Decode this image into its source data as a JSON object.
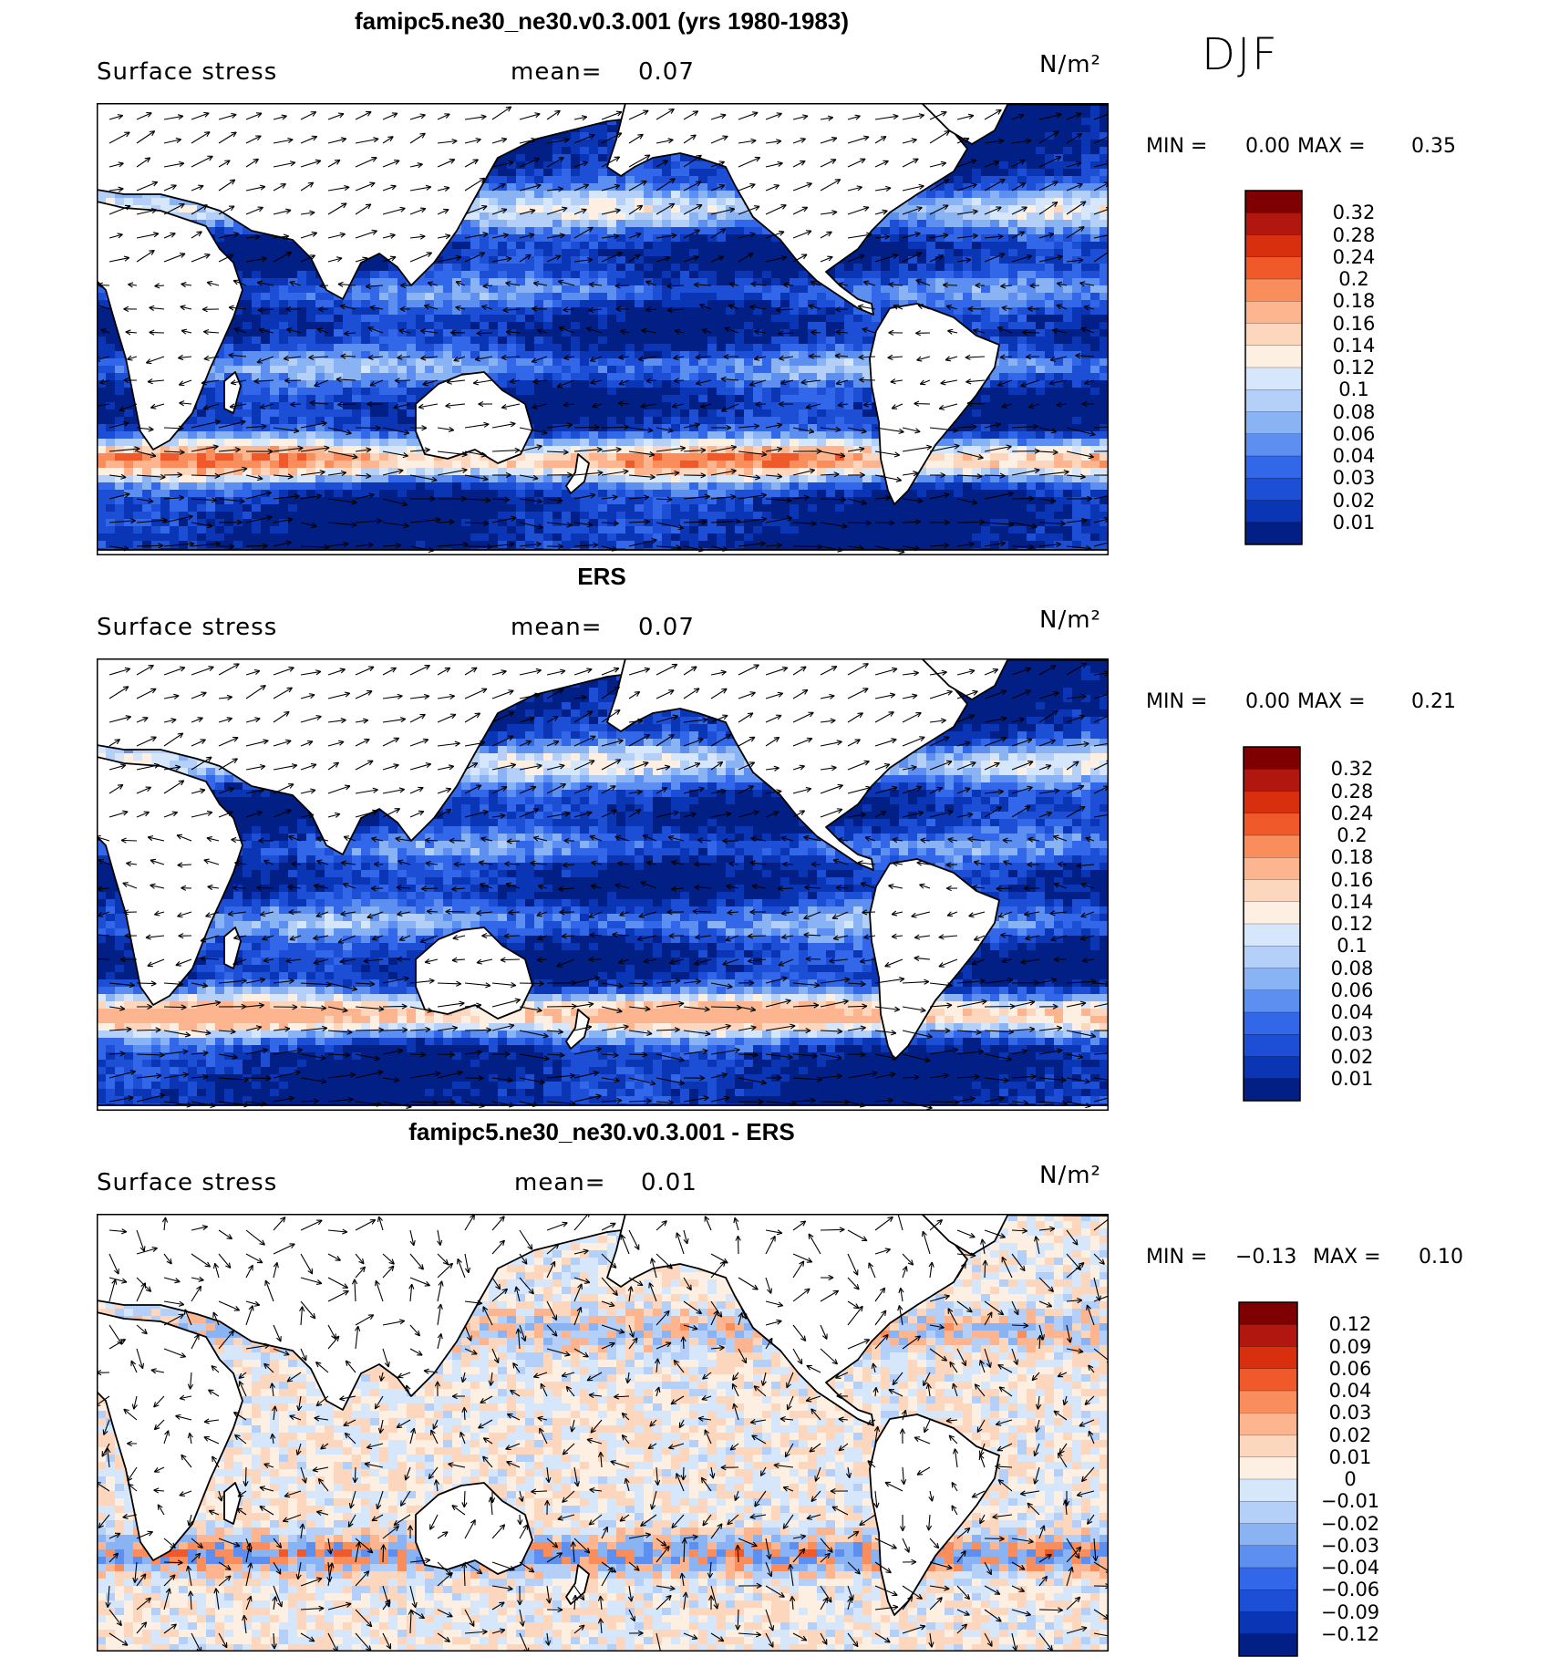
{
  "season": "DJF",
  "panels": [
    {
      "title": "famipc5.ne30_ne30.v0.3.001 (yrs 1980-1983)",
      "variable": "Surface stress",
      "mean_label": "mean=",
      "mean_value": "0.07",
      "units": "N/m²",
      "min_label": "MIN =",
      "min_value": "0.00",
      "max_label": "MAX =",
      "max_value": "0.35",
      "colorbar_ticks": [
        "0.32",
        "0.28",
        "0.24",
        "0.2",
        "0.18",
        "0.16",
        "0.14",
        "0.12",
        "0.1",
        "0.08",
        "0.06",
        "0.04",
        "0.03",
        "0.02",
        "0.01"
      ],
      "colorbar_colors": [
        "#7f0000",
        "#b2170f",
        "#d8300f",
        "#f05a2a",
        "#f98e5c",
        "#fcb58e",
        "#fdd7bd",
        "#fdefe2",
        "#d6e7fb",
        "#b5d0f8",
        "#8ab3f3",
        "#5c8ff0",
        "#3167e8",
        "#1c4fd6",
        "#0a35b5",
        "#021f85"
      ],
      "field_colors": [
        "#021f85",
        "#0a35b5",
        "#1c4fd6",
        "#3167e8",
        "#5c8ff0",
        "#8ab3f3",
        "#b5d0f8",
        "#d6e7fb",
        "#fdefe2",
        "#fdd7bd",
        "#fcb58e",
        "#f98e5c",
        "#f05a2a"
      ]
    },
    {
      "title": "ERS",
      "variable": "Surface stress",
      "mean_label": "mean=",
      "mean_value": "0.07",
      "units": "N/m²",
      "min_label": "MIN =",
      "min_value": "0.00",
      "max_label": "MAX =",
      "max_value": "0.21",
      "colorbar_ticks": [
        "0.32",
        "0.28",
        "0.24",
        "0.2",
        "0.18",
        "0.16",
        "0.14",
        "0.12",
        "0.1",
        "0.08",
        "0.06",
        "0.04",
        "0.03",
        "0.02",
        "0.01"
      ],
      "colorbar_colors": [
        "#7f0000",
        "#b2170f",
        "#d8300f",
        "#f05a2a",
        "#f98e5c",
        "#fcb58e",
        "#fdd7bd",
        "#fdefe2",
        "#d6e7fb",
        "#b5d0f8",
        "#8ab3f3",
        "#5c8ff0",
        "#3167e8",
        "#1c4fd6",
        "#0a35b5",
        "#021f85"
      ],
      "field_colors": [
        "#021f85",
        "#0a35b5",
        "#1c4fd6",
        "#3167e8",
        "#5c8ff0",
        "#8ab3f3",
        "#b5d0f8",
        "#d6e7fb",
        "#fdefe2",
        "#fdd7bd",
        "#fcb58e"
      ]
    },
    {
      "title": "famipc5.ne30_ne30.v0.3.001 - ERS",
      "variable": "Surface stress",
      "mean_label": "mean=",
      "mean_value": "0.01",
      "units": "N/m²",
      "min_label": "MIN =",
      "min_value": "−0.13",
      "max_label": "MAX =",
      "max_value": "0.10",
      "colorbar_ticks": [
        "0.12",
        "0.09",
        "0.06",
        "0.04",
        "0.03",
        "0.02",
        "0.01",
        "0",
        "−0.01",
        "−0.02",
        "−0.03",
        "−0.04",
        "−0.06",
        "−0.09",
        "−0.12"
      ],
      "colorbar_colors": [
        "#7f0000",
        "#b2170f",
        "#d8300f",
        "#f05a2a",
        "#f98e5c",
        "#fcb58e",
        "#fdd7bd",
        "#fdefe2",
        "#d6e7fb",
        "#b5d0f8",
        "#8ab3f3",
        "#5c8ff0",
        "#3167e8",
        "#1c4fd6",
        "#0a35b5",
        "#021f85"
      ],
      "field_colors": [
        "#fdefe2",
        "#d6e7fb",
        "#fdd7bd",
        "#b5d0f8",
        "#fcb58e",
        "#8ab3f3",
        "#f98e5c",
        "#5c8ff0",
        "#f05a2a",
        "#3167e8"
      ]
    }
  ]
}
